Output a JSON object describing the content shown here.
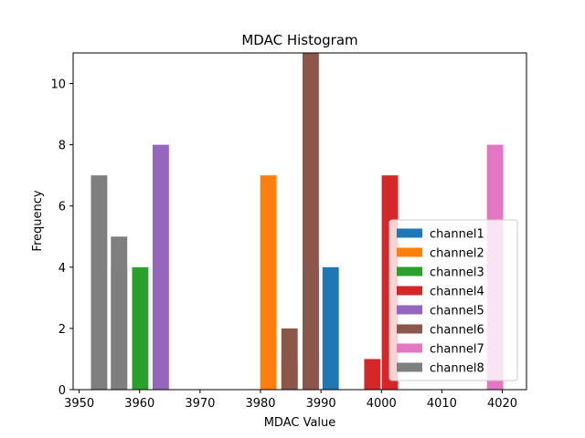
{
  "chart_data": {
    "type": "bar",
    "title": "MDAC Histogram",
    "xlabel": "MDAC Value",
    "ylabel": "Frequency",
    "xlim": [
      3949,
      4024
    ],
    "ylim": [
      0,
      11
    ],
    "x_ticks": [
      3950,
      3960,
      3970,
      3980,
      3990,
      4000,
      4010,
      4020
    ],
    "y_ticks": [
      0,
      2,
      4,
      6,
      8,
      10
    ],
    "bar_width": 2.7,
    "legend_position": "lower right",
    "series": [
      {
        "name": "channel1",
        "color": "#1f77b4",
        "bars": [
          {
            "x": 3988.3,
            "value": 4
          },
          {
            "x": 3991.6,
            "value": 4
          }
        ]
      },
      {
        "name": "channel2",
        "color": "#ff7f0e",
        "bars": [
          {
            "x": 3981.3,
            "value": 7
          },
          {
            "x": 3984.8,
            "value": 1
          }
        ]
      },
      {
        "name": "channel3",
        "color": "#2ca02c",
        "bars": [
          {
            "x": 3956.6,
            "value": 4
          },
          {
            "x": 3960.1,
            "value": 4
          }
        ]
      },
      {
        "name": "channel4",
        "color": "#d62728",
        "bars": [
          {
            "x": 3998.5,
            "value": 1
          },
          {
            "x": 4001.4,
            "value": 7
          }
        ]
      },
      {
        "name": "channel5",
        "color": "#9467bd",
        "bars": [
          {
            "x": 3963.5,
            "value": 8
          }
        ]
      },
      {
        "name": "channel6",
        "color": "#8c564b",
        "bars": [
          {
            "x": 3984.8,
            "value": 2
          },
          {
            "x": 3988.3,
            "value": 11
          }
        ]
      },
      {
        "name": "channel7",
        "color": "#e377c2",
        "bars": [
          {
            "x": 4018.8,
            "value": 8
          }
        ]
      },
      {
        "name": "channel8",
        "color": "#7f7f7f",
        "bars": [
          {
            "x": 3953.3,
            "value": 7
          },
          {
            "x": 3956.6,
            "value": 5
          }
        ]
      }
    ]
  }
}
